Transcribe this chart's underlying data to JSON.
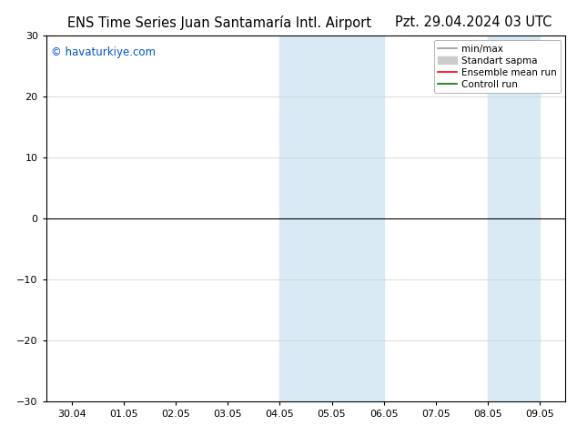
{
  "title_left": "ENS Time Series Juan Santamaría Intl. Airport",
  "title_right": "Pzt. 29.04.2024 03 UTC",
  "watermark": "© havaturkiye.com",
  "ylim": [
    -30,
    30
  ],
  "yticks": [
    -30,
    -20,
    -10,
    0,
    10,
    20,
    30
  ],
  "xtick_labels": [
    "30.04",
    "01.05",
    "02.05",
    "03.05",
    "04.05",
    "05.05",
    "06.05",
    "07.05",
    "08.05",
    "09.05"
  ],
  "xtick_positions": [
    0,
    1,
    2,
    3,
    4,
    5,
    6,
    7,
    8,
    9
  ],
  "shaded_bands_merged": [
    {
      "x_start": 4.0,
      "x_end": 6.0,
      "color": "#daeaf5"
    },
    {
      "x_start": 8.0,
      "x_end": 9.0,
      "color": "#daeaf5"
    }
  ],
  "legend_entries": [
    {
      "label": "min/max",
      "color": "#999999",
      "lw": 1.2,
      "style": "solid"
    },
    {
      "label": "Standart sapma",
      "color": "#cccccc",
      "lw": 7,
      "style": "solid"
    },
    {
      "label": "Ensemble mean run",
      "color": "#ff0000",
      "lw": 1.2,
      "style": "solid"
    },
    {
      "label": "Controll run",
      "color": "#007700",
      "lw": 1.2,
      "style": "solid"
    }
  ],
  "background_color": "#ffffff",
  "grid_color": "#cccccc",
  "zero_line_color": "#000000",
  "title_fontsize": 10.5,
  "watermark_color": "#0055cc",
  "watermark_fontsize": 8.5,
  "axis_fontsize": 8
}
